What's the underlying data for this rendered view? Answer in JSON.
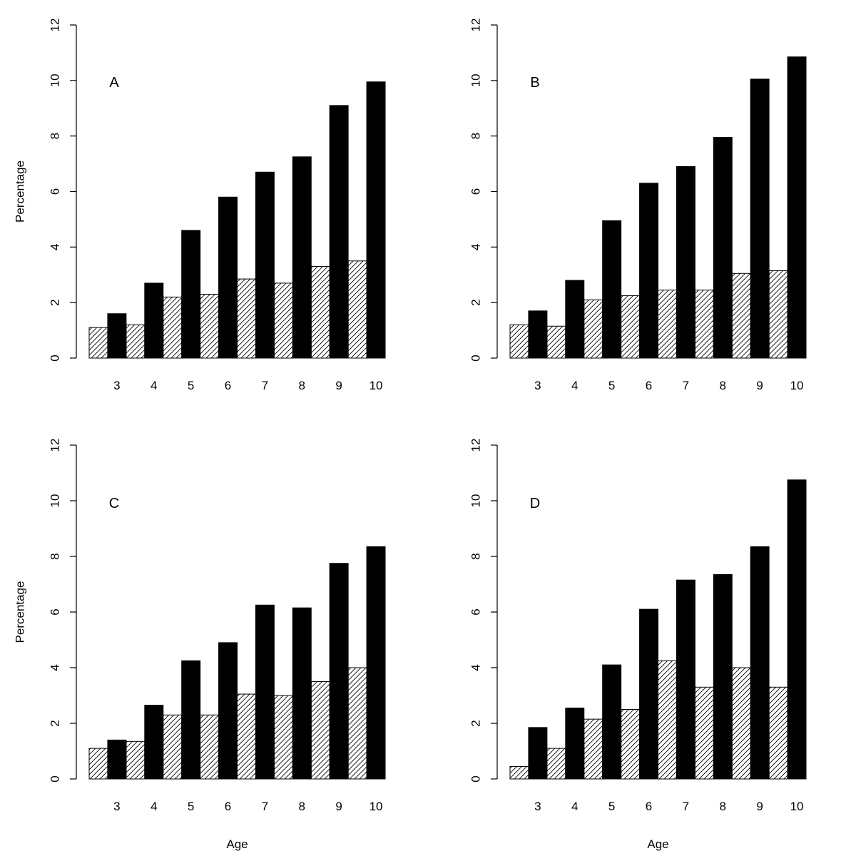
{
  "figure": {
    "panels": [
      "A",
      "B",
      "C",
      "D"
    ]
  },
  "chart_data": [
    {
      "type": "bar",
      "title": "",
      "panel_label": "A",
      "xlabel": "",
      "ylabel": "Percentage",
      "ylim": [
        0,
        12
      ],
      "yticks": [
        0,
        2,
        4,
        6,
        8,
        10,
        12
      ],
      "categories": [
        "3",
        "4",
        "5",
        "6",
        "7",
        "8",
        "9",
        "10"
      ],
      "grid": false,
      "series": [
        {
          "fill": "hatched",
          "color": "#000000",
          "values": [
            1.1,
            1.2,
            2.2,
            2.3,
            2.85,
            2.7,
            3.3,
            3.5
          ]
        },
        {
          "fill": "solid",
          "color": "#000000",
          "values": [
            1.6,
            2.7,
            4.6,
            5.8,
            6.7,
            7.25,
            9.1,
            9.95
          ]
        }
      ]
    },
    {
      "type": "bar",
      "title": "",
      "panel_label": "B",
      "xlabel": "",
      "ylabel": "",
      "ylim": [
        0,
        12
      ],
      "yticks": [
        0,
        2,
        4,
        6,
        8,
        10,
        12
      ],
      "categories": [
        "3",
        "4",
        "5",
        "6",
        "7",
        "8",
        "9",
        "10"
      ],
      "grid": false,
      "series": [
        {
          "fill": "hatched",
          "color": "#000000",
          "values": [
            1.2,
            1.15,
            2.1,
            2.25,
            2.45,
            2.45,
            3.05,
            3.15
          ]
        },
        {
          "fill": "solid",
          "color": "#000000",
          "values": [
            1.7,
            2.8,
            4.95,
            6.3,
            6.9,
            7.95,
            10.05,
            10.85
          ]
        }
      ]
    },
    {
      "type": "bar",
      "title": "",
      "panel_label": "C",
      "xlabel": "Age",
      "ylabel": "Percentage",
      "ylim": [
        0,
        12
      ],
      "yticks": [
        0,
        2,
        4,
        6,
        8,
        10,
        12
      ],
      "categories": [
        "3",
        "4",
        "5",
        "6",
        "7",
        "8",
        "9",
        "10"
      ],
      "grid": false,
      "series": [
        {
          "fill": "hatched",
          "color": "#000000",
          "values": [
            1.1,
            1.35,
            2.3,
            2.3,
            3.05,
            3.0,
            3.5,
            4.0
          ]
        },
        {
          "fill": "solid",
          "color": "#000000",
          "values": [
            1.4,
            2.65,
            4.25,
            4.9,
            6.25,
            6.15,
            7.75,
            8.35
          ]
        }
      ]
    },
    {
      "type": "bar",
      "title": "",
      "panel_label": "D",
      "xlabel": "Age",
      "ylabel": "",
      "ylim": [
        0,
        12
      ],
      "yticks": [
        0,
        2,
        4,
        6,
        8,
        10,
        12
      ],
      "categories": [
        "3",
        "4",
        "5",
        "6",
        "7",
        "8",
        "9",
        "10"
      ],
      "grid": false,
      "series": [
        {
          "fill": "hatched",
          "color": "#000000",
          "values": [
            0.45,
            1.1,
            2.15,
            2.5,
            4.25,
            3.3,
            4.0,
            3.3
          ]
        },
        {
          "fill": "solid",
          "color": "#000000",
          "values": [
            1.85,
            2.55,
            4.1,
            6.1,
            7.15,
            7.35,
            8.35,
            10.75
          ]
        }
      ]
    }
  ]
}
